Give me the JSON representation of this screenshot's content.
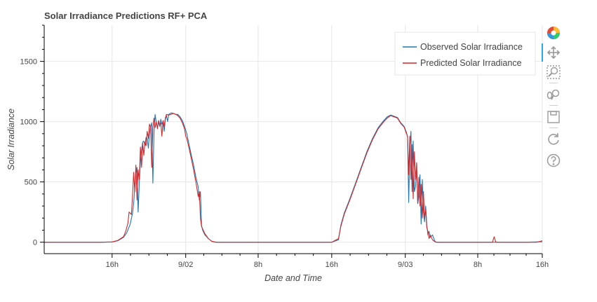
{
  "chart_data": {
    "type": "line",
    "title": "Solar Irradiance Predictions RF+ PCA",
    "xlabel": "Date and Time",
    "ylabel": "Solar Irradiance",
    "xlim_hours": [
      -4,
      40
    ],
    "ylim": [
      -95,
      1800
    ],
    "x_ticks": [
      {
        "h": 2,
        "label": "16h"
      },
      {
        "h": 8.5,
        "label": "9/02"
      },
      {
        "h": 14.9,
        "label": "8h"
      },
      {
        "h": 21.4,
        "label": "16h"
      },
      {
        "h": 27.9,
        "label": "9/03"
      },
      {
        "h": 34.3,
        "label": "8h"
      },
      {
        "h": 40,
        "label": "16h"
      }
    ],
    "y_ticks": [
      0,
      500,
      1000,
      1500
    ],
    "grid": true,
    "legend_position": "top-right",
    "series": [
      {
        "name": "Observed Solar Irradiance",
        "color": "#1f77b4",
        "points": [
          [
            -4,
            0
          ],
          [
            1,
            0
          ],
          [
            2,
            2
          ],
          [
            2.5,
            12
          ],
          [
            3,
            40
          ],
          [
            3.3,
            80
          ],
          [
            3.6,
            150
          ],
          [
            3.8,
            240
          ],
          [
            3.9,
            320
          ],
          [
            4.0,
            450
          ],
          [
            4.1,
            560
          ],
          [
            4.2,
            620
          ],
          [
            4.3,
            250
          ],
          [
            4.4,
            480
          ],
          [
            4.5,
            680
          ],
          [
            4.6,
            760
          ],
          [
            4.7,
            830
          ],
          [
            4.8,
            840
          ],
          [
            4.9,
            800
          ],
          [
            5.0,
            870
          ],
          [
            5.1,
            860
          ],
          [
            5.2,
            780
          ],
          [
            5.3,
            900
          ],
          [
            5.4,
            960
          ],
          [
            5.5,
            990
          ],
          [
            5.6,
            490
          ],
          [
            5.7,
            900
          ],
          [
            5.8,
            1060
          ],
          [
            5.9,
            990
          ],
          [
            6.0,
            950
          ],
          [
            6.1,
            1000
          ],
          [
            6.2,
            960
          ],
          [
            6.3,
            1020
          ],
          [
            6.4,
            980
          ],
          [
            6.5,
            1000
          ],
          [
            6.6,
            920
          ],
          [
            6.7,
            1020
          ],
          [
            6.8,
            1050
          ],
          [
            6.9,
            1000
          ],
          [
            7.0,
            1060
          ],
          [
            7.2,
            1072
          ],
          [
            7.4,
            1070
          ],
          [
            7.6,
            1060
          ],
          [
            7.8,
            1060
          ],
          [
            8.0,
            1040
          ],
          [
            8.2,
            1010
          ],
          [
            8.4,
            960
          ],
          [
            8.6,
            900
          ],
          [
            8.8,
            810
          ],
          [
            9.0,
            720
          ],
          [
            9.2,
            640
          ],
          [
            9.4,
            540
          ],
          [
            9.6,
            460
          ],
          [
            9.7,
            350
          ],
          [
            9.8,
            420
          ],
          [
            9.9,
            140
          ],
          [
            10.0,
            100
          ],
          [
            10.2,
            60
          ],
          [
            10.5,
            30
          ],
          [
            10.8,
            8
          ],
          [
            11.1,
            0
          ],
          [
            21.4,
            0
          ],
          [
            22.0,
            20
          ],
          [
            22.2,
            140
          ],
          [
            22.5,
            240
          ],
          [
            23.0,
            360
          ],
          [
            23.5,
            490
          ],
          [
            24.0,
            620
          ],
          [
            24.5,
            750
          ],
          [
            25.0,
            860
          ],
          [
            25.5,
            950
          ],
          [
            26.0,
            1010
          ],
          [
            26.3,
            1040
          ],
          [
            26.6,
            1055
          ],
          [
            26.9,
            1045
          ],
          [
            27.2,
            1035
          ],
          [
            27.5,
            990
          ],
          [
            27.8,
            960
          ],
          [
            28.0,
            910
          ],
          [
            28.1,
            870
          ],
          [
            28.2,
            330
          ],
          [
            28.3,
            780
          ],
          [
            28.4,
            920
          ],
          [
            28.5,
            420
          ],
          [
            28.6,
            840
          ],
          [
            28.7,
            420
          ],
          [
            28.8,
            460
          ],
          [
            28.9,
            620
          ],
          [
            29.0,
            320
          ],
          [
            29.1,
            380
          ],
          [
            29.2,
            560
          ],
          [
            29.3,
            150
          ],
          [
            29.4,
            520
          ],
          [
            29.5,
            250
          ],
          [
            29.6,
            170
          ],
          [
            29.7,
            300
          ],
          [
            29.8,
            140
          ],
          [
            29.9,
            60
          ],
          [
            30.0,
            90
          ],
          [
            30.1,
            40
          ],
          [
            30.3,
            60
          ],
          [
            30.5,
            10
          ],
          [
            30.6,
            0
          ],
          [
            38.5,
            0
          ],
          [
            40,
            4
          ]
        ]
      },
      {
        "name": "Predicted Solar Irradiance",
        "color": "#d62728",
        "points": [
          [
            -4,
            0
          ],
          [
            1,
            0
          ],
          [
            2,
            2
          ],
          [
            2.5,
            15
          ],
          [
            3,
            45
          ],
          [
            3.2,
            90
          ],
          [
            3.4,
            160
          ],
          [
            3.5,
            250
          ],
          [
            3.7,
            230
          ],
          [
            3.8,
            380
          ],
          [
            3.9,
            580
          ],
          [
            4.0,
            420
          ],
          [
            4.1,
            640
          ],
          [
            4.2,
            350
          ],
          [
            4.3,
            600
          ],
          [
            4.4,
            520
          ],
          [
            4.5,
            790
          ],
          [
            4.6,
            620
          ],
          [
            4.7,
            820
          ],
          [
            4.8,
            720
          ],
          [
            4.9,
            830
          ],
          [
            5.0,
            800
          ],
          [
            5.1,
            920
          ],
          [
            5.2,
            860
          ],
          [
            5.3,
            980
          ],
          [
            5.4,
            950
          ],
          [
            5.5,
            620
          ],
          [
            5.6,
            950
          ],
          [
            5.7,
            1030
          ],
          [
            5.8,
            950
          ],
          [
            5.9,
            1000
          ],
          [
            6.0,
            940
          ],
          [
            6.1,
            1010
          ],
          [
            6.2,
            970
          ],
          [
            6.3,
            990
          ],
          [
            6.4,
            880
          ],
          [
            6.5,
            1010
          ],
          [
            6.6,
            960
          ],
          [
            6.7,
            1030
          ],
          [
            6.8,
            1060
          ],
          [
            7.0,
            1055
          ],
          [
            7.2,
            1060
          ],
          [
            7.4,
            1068
          ],
          [
            7.6,
            1062
          ],
          [
            7.8,
            1050
          ],
          [
            8.0,
            1030
          ],
          [
            8.2,
            990
          ],
          [
            8.4,
            940
          ],
          [
            8.5,
            880
          ],
          [
            8.6,
            860
          ],
          [
            8.8,
            780
          ],
          [
            9.0,
            690
          ],
          [
            9.2,
            600
          ],
          [
            9.4,
            500
          ],
          [
            9.6,
            380
          ],
          [
            9.7,
            420
          ],
          [
            9.8,
            200
          ],
          [
            9.9,
            130
          ],
          [
            10.0,
            110
          ],
          [
            10.2,
            70
          ],
          [
            10.5,
            30
          ],
          [
            10.8,
            8
          ],
          [
            11.2,
            0
          ],
          [
            21.4,
            0
          ],
          [
            22.0,
            30
          ],
          [
            22.2,
            130
          ],
          [
            22.5,
            230
          ],
          [
            23.0,
            350
          ],
          [
            23.5,
            480
          ],
          [
            24.0,
            610
          ],
          [
            24.5,
            740
          ],
          [
            25.0,
            850
          ],
          [
            25.5,
            940
          ],
          [
            26.0,
            1000
          ],
          [
            26.3,
            1030
          ],
          [
            26.6,
            1050
          ],
          [
            26.9,
            1040
          ],
          [
            27.2,
            1030
          ],
          [
            27.5,
            985
          ],
          [
            27.8,
            955
          ],
          [
            28.0,
            900
          ],
          [
            28.1,
            880
          ],
          [
            28.2,
            560
          ],
          [
            28.3,
            880
          ],
          [
            28.4,
            520
          ],
          [
            28.5,
            810
          ],
          [
            28.6,
            360
          ],
          [
            28.7,
            750
          ],
          [
            28.8,
            520
          ],
          [
            28.9,
            660
          ],
          [
            29.0,
            320
          ],
          [
            29.1,
            540
          ],
          [
            29.2,
            300
          ],
          [
            29.3,
            480
          ],
          [
            29.4,
            200
          ],
          [
            29.5,
            420
          ],
          [
            29.6,
            200
          ],
          [
            29.7,
            270
          ],
          [
            29.8,
            120
          ],
          [
            29.9,
            90
          ],
          [
            30.0,
            30
          ],
          [
            30.1,
            60
          ],
          [
            30.3,
            20
          ],
          [
            30.5,
            5
          ],
          [
            30.7,
            0
          ],
          [
            35.6,
            0
          ],
          [
            35.75,
            45
          ],
          [
            35.9,
            0
          ],
          [
            38.5,
            0
          ],
          [
            39.5,
            0
          ],
          [
            40,
            12
          ]
        ]
      }
    ]
  },
  "toolbar": {
    "tools": [
      {
        "name": "pan"
      },
      {
        "name": "box-zoom"
      },
      {
        "name": "wheel-zoom"
      },
      {
        "name": "save"
      },
      {
        "name": "reset"
      },
      {
        "name": "help"
      }
    ]
  }
}
